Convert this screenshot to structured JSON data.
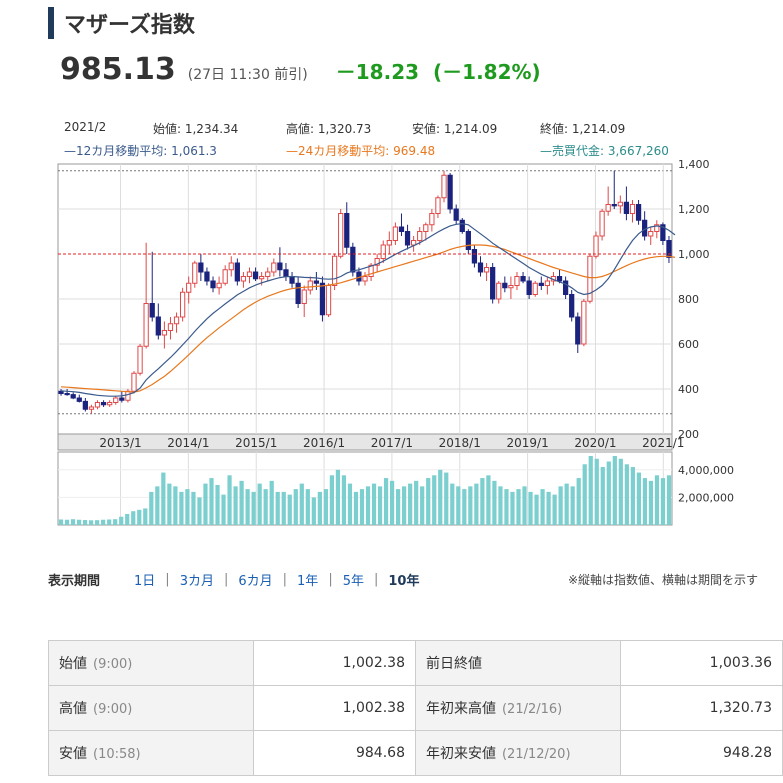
{
  "header": {
    "title": "マザーズ指数"
  },
  "price": {
    "value": "985.13",
    "time": "(27日 11:30 前引)",
    "change": "－18.23",
    "change_pct": "(－1.82%)"
  },
  "info": {
    "month": "2021/2",
    "open": "始値: 1,234.34",
    "high": "高値: 1,320.73",
    "low": "安値: 1,214.09",
    "close": "終値: 1,214.09",
    "ma12": "—12カ月移動平均: 1,061.3",
    "ma24": "—24カ月移動平均: 969.48",
    "volume": "—売買代金: 3,667,260"
  },
  "colors": {
    "up": "#e04848",
    "down": "#1a237e",
    "ma12": "#3a5a8c",
    "ma24": "#e8781e",
    "volume": "#7ccfcf",
    "ref_line": "#e02020"
  },
  "chart_data": [
    {
      "type": "candlestick",
      "title": "",
      "x_tick_labels": [
        "2013/1",
        "2014/1",
        "2015/1",
        "2016/1",
        "2017/1",
        "2018/1",
        "2019/1",
        "2020/1",
        "2021/1"
      ],
      "y_tick_labels": [
        "1,400",
        "1,200",
        "1,000",
        "800",
        "600",
        "400",
        "200"
      ],
      "ylim": [
        200,
        1400
      ],
      "grid": true,
      "reference_line": 1000,
      "ohlc": [
        [
          390,
          400,
          370,
          380
        ],
        [
          380,
          400,
          370,
          375
        ],
        [
          375,
          385,
          355,
          360
        ],
        [
          360,
          375,
          340,
          345
        ],
        [
          345,
          360,
          300,
          310
        ],
        [
          310,
          330,
          290,
          320
        ],
        [
          320,
          350,
          310,
          340
        ],
        [
          340,
          350,
          320,
          330
        ],
        [
          330,
          350,
          320,
          340
        ],
        [
          340,
          370,
          330,
          360
        ],
        [
          360,
          390,
          340,
          350
        ],
        [
          350,
          400,
          340,
          390
        ],
        [
          390,
          480,
          380,
          470
        ],
        [
          470,
          600,
          460,
          590
        ],
        [
          590,
          1050,
          580,
          780
        ],
        [
          780,
          1010,
          700,
          720
        ],
        [
          720,
          780,
          620,
          640
        ],
        [
          640,
          700,
          580,
          660
        ],
        [
          660,
          720,
          620,
          690
        ],
        [
          690,
          740,
          650,
          720
        ],
        [
          720,
          850,
          700,
          830
        ],
        [
          830,
          900,
          780,
          870
        ],
        [
          870,
          970,
          850,
          960
        ],
        [
          960,
          1000,
          880,
          920
        ],
        [
          920,
          940,
          860,
          880
        ],
        [
          880,
          900,
          830,
          850
        ],
        [
          850,
          900,
          820,
          870
        ],
        [
          870,
          950,
          860,
          930
        ],
        [
          930,
          990,
          900,
          960
        ],
        [
          960,
          980,
          860,
          880
        ],
        [
          880,
          920,
          850,
          900
        ],
        [
          900,
          940,
          870,
          920
        ],
        [
          920,
          940,
          880,
          890
        ],
        [
          890,
          920,
          860,
          900
        ],
        [
          900,
          940,
          880,
          920
        ],
        [
          920,
          980,
          900,
          960
        ],
        [
          960,
          1030,
          900,
          930
        ],
        [
          930,
          960,
          880,
          900
        ],
        [
          900,
          920,
          850,
          870
        ],
        [
          870,
          900,
          760,
          780
        ],
        [
          780,
          860,
          720,
          840
        ],
        [
          840,
          900,
          820,
          880
        ],
        [
          880,
          920,
          840,
          870
        ],
        [
          870,
          900,
          700,
          730
        ],
        [
          730,
          870,
          720,
          860
        ],
        [
          860,
          1000,
          840,
          990
        ],
        [
          990,
          1200,
          980,
          1180
        ],
        [
          1180,
          1230,
          1000,
          1030
        ],
        [
          1030,
          1050,
          900,
          920
        ],
        [
          920,
          940,
          860,
          880
        ],
        [
          880,
          920,
          860,
          900
        ],
        [
          900,
          960,
          880,
          950
        ],
        [
          950,
          1000,
          920,
          980
        ],
        [
          980,
          1060,
          960,
          1040
        ],
        [
          1040,
          1100,
          1000,
          1060
        ],
        [
          1060,
          1140,
          1040,
          1120
        ],
        [
          1120,
          1180,
          1080,
          1100
        ],
        [
          1100,
          1130,
          1020,
          1040
        ],
        [
          1040,
          1080,
          1010,
          1060
        ],
        [
          1060,
          1120,
          1040,
          1100
        ],
        [
          1100,
          1140,
          1060,
          1130
        ],
        [
          1130,
          1200,
          1100,
          1180
        ],
        [
          1180,
          1260,
          1160,
          1250
        ],
        [
          1250,
          1370,
          1230,
          1350
        ],
        [
          1350,
          1360,
          1180,
          1200
        ],
        [
          1200,
          1220,
          1130,
          1150
        ],
        [
          1150,
          1160,
          1090,
          1100
        ],
        [
          1100,
          1110,
          1000,
          1020
        ],
        [
          1020,
          1040,
          940,
          960
        ],
        [
          960,
          990,
          900,
          920
        ],
        [
          920,
          960,
          880,
          940
        ],
        [
          940,
          960,
          780,
          800
        ],
        [
          800,
          880,
          780,
          870
        ],
        [
          870,
          900,
          830,
          850
        ],
        [
          850,
          900,
          800,
          860
        ],
        [
          860,
          920,
          840,
          900
        ],
        [
          900,
          920,
          870,
          880
        ],
        [
          880,
          900,
          800,
          820
        ],
        [
          820,
          880,
          810,
          870
        ],
        [
          870,
          900,
          840,
          860
        ],
        [
          860,
          900,
          820,
          880
        ],
        [
          880,
          920,
          860,
          900
        ],
        [
          900,
          930,
          870,
          880
        ],
        [
          880,
          900,
          800,
          820
        ],
        [
          820,
          840,
          700,
          720
        ],
        [
          720,
          740,
          560,
          600
        ],
        [
          600,
          800,
          590,
          790
        ],
        [
          790,
          1000,
          780,
          990
        ],
        [
          990,
          1100,
          980,
          1080
        ],
        [
          1080,
          1200,
          1060,
          1190
        ],
        [
          1190,
          1300,
          1170,
          1220
        ],
        [
          1220,
          1370,
          1200,
          1214
        ],
        [
          1214,
          1260,
          1180,
          1230
        ],
        [
          1230,
          1300,
          1150,
          1180
        ],
        [
          1180,
          1240,
          1140,
          1220
        ],
        [
          1220,
          1240,
          1130,
          1150
        ],
        [
          1150,
          1190,
          1060,
          1080
        ],
        [
          1080,
          1120,
          1040,
          1100
        ],
        [
          1100,
          1150,
          1070,
          1130
        ],
        [
          1130,
          1140,
          1040,
          1060
        ],
        [
          1060,
          1080,
          960,
          985
        ]
      ],
      "ma12": [
        392,
        390,
        388,
        385,
        380,
        376,
        372,
        370,
        368,
        368,
        370,
        375,
        384,
        404,
        440,
        466,
        490,
        515,
        540,
        567,
        596,
        625,
        656,
        685,
        712,
        736,
        757,
        778,
        798,
        818,
        834,
        850,
        862,
        872,
        880,
        888,
        895,
        899,
        900,
        898,
        896,
        895,
        894,
        890,
        888,
        890,
        900,
        915,
        925,
        930,
        938,
        946,
        955,
        968,
        983,
        998,
        1012,
        1025,
        1037,
        1050,
        1065,
        1082,
        1098,
        1112,
        1125,
        1132,
        1135,
        1130,
        1110,
        1090,
        1070,
        1048,
        1030,
        1012,
        994,
        976,
        958,
        940,
        925,
        910,
        898,
        886,
        876,
        866,
        850,
        830,
        820,
        825,
        840,
        860,
        890,
        930,
        975,
        1020,
        1060,
        1090,
        1110,
        1120,
        1125,
        1120,
        1105,
        1085
      ],
      "ma24": [
        410,
        408,
        406,
        404,
        402,
        400,
        398,
        396,
        394,
        392,
        390,
        388,
        386,
        392,
        405,
        420,
        438,
        456,
        478,
        502,
        526,
        552,
        578,
        604,
        628,
        650,
        672,
        692,
        712,
        732,
        752,
        770,
        786,
        800,
        812,
        822,
        832,
        840,
        846,
        850,
        852,
        854,
        856,
        858,
        862,
        866,
        872,
        880,
        888,
        896,
        904,
        912,
        920,
        928,
        936,
        944,
        952,
        960,
        968,
        976,
        984,
        992,
        1000,
        1010,
        1020,
        1028,
        1034,
        1038,
        1040,
        1040,
        1038,
        1034,
        1028,
        1020,
        1010,
        1000,
        990,
        980,
        970,
        960,
        950,
        940,
        932,
        924,
        916,
        908,
        900,
        895,
        895,
        900,
        910,
        922,
        935,
        948,
        960,
        970,
        978,
        984,
        988,
        990,
        990,
        985
      ]
    },
    {
      "type": "bar",
      "title": "",
      "y_tick_labels": [
        "4,000,000",
        "2,000,000"
      ],
      "ylim": [
        0,
        5000000
      ],
      "volume": [
        400000,
        380000,
        420000,
        380000,
        360000,
        340000,
        350000,
        380000,
        400000,
        420000,
        600000,
        800000,
        1000000,
        1100000,
        1200000,
        2400000,
        2800000,
        3800000,
        3000000,
        2800000,
        2400000,
        2600000,
        2400000,
        2000000,
        3000000,
        3400000,
        2900000,
        2200000,
        3600000,
        2800000,
        3200000,
        2600000,
        2400000,
        3000000,
        2600000,
        3200000,
        2400000,
        2400000,
        2200000,
        2600000,
        3000000,
        2600000,
        2000000,
        2400000,
        2600000,
        3600000,
        4000000,
        3600000,
        3000000,
        2400000,
        2600000,
        2800000,
        3000000,
        2800000,
        3400000,
        3200000,
        2600000,
        2800000,
        3000000,
        3200000,
        2800000,
        3400000,
        3600000,
        4000000,
        3800000,
        3000000,
        2800000,
        2600000,
        2800000,
        3000000,
        3400000,
        3600000,
        3200000,
        2800000,
        2600000,
        2400000,
        2600000,
        2800000,
        2400000,
        2200000,
        2600000,
        2400000,
        2200000,
        2800000,
        3000000,
        2800000,
        3400000,
        4400000,
        5000000,
        4800000,
        4200000,
        4600000,
        5200000,
        4800000,
        4400000,
        4200000,
        3800000,
        3400000,
        3200000,
        3600000,
        3400000,
        3600000
      ]
    }
  ],
  "periods": {
    "label": "表示期間",
    "items": [
      "1日",
      "3カ月",
      "6カ月",
      "1年",
      "5年",
      "10年"
    ],
    "active": "10年"
  },
  "note": "※縦軸は指数値、横軸は期間を示す",
  "stats": {
    "rows": [
      {
        "l1": "始値",
        "s1": "(9:00)",
        "v1": "1,002.38",
        "l2": "前日終値",
        "s2": "",
        "v2": "1,003.36"
      },
      {
        "l1": "高値",
        "s1": "(9:00)",
        "v1": "1,002.38",
        "l2": "年初来高値",
        "s2": "(21/2/16)",
        "v2": "1,320.73"
      },
      {
        "l1": "安値",
        "s1": "(10:58)",
        "v1": "984.68",
        "l2": "年初来安値",
        "s2": "(21/12/20)",
        "v2": "948.28"
      }
    ]
  }
}
